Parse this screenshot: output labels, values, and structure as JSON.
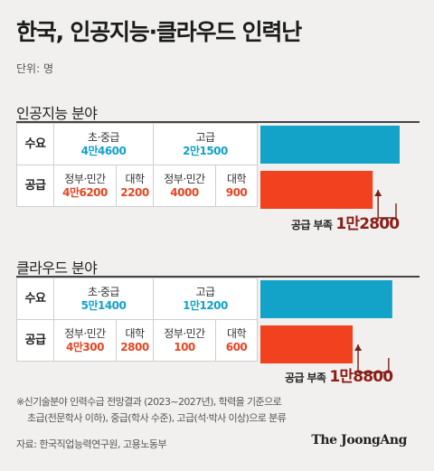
{
  "title": "한국, 인공지능·클라우드 인력난",
  "unit": "단위: 명",
  "colors": {
    "demand": "#13a3c9",
    "supply": "#f2411f",
    "shortage_text": "#8b1e18",
    "arrow": "#7b1f18"
  },
  "sections": [
    {
      "title": "인공지능 분야",
      "demand_label": "수요",
      "supply_label": "공급",
      "demand": [
        {
          "label": "초·중급",
          "value": "4만4600"
        },
        {
          "label": "고급",
          "value": "2만1500"
        }
      ],
      "supply": [
        {
          "label": "정부·민간",
          "value": "4만6200"
        },
        {
          "label": "대학",
          "value": "2200"
        },
        {
          "label": "정부·민간",
          "value": "4000"
        },
        {
          "label": "대학",
          "value": "900"
        }
      ],
      "shortage_label": "공급 부족",
      "shortage_value": "1만2800"
    },
    {
      "title": "클라우드 분야",
      "demand_label": "수요",
      "supply_label": "공급",
      "demand": [
        {
          "label": "초·중급",
          "value": "5만1400"
        },
        {
          "label": "고급",
          "value": "1만1200"
        }
      ],
      "supply": [
        {
          "label": "정부·민간",
          "value": "4만300"
        },
        {
          "label": "대학",
          "value": "2800"
        },
        {
          "label": "정부·민간",
          "value": "100"
        },
        {
          "label": "대학",
          "value": "600"
        }
      ],
      "shortage_label": "공급 부족",
      "shortage_value": "1만8800"
    }
  ],
  "chart_data": {
    "type": "bar",
    "categories": [
      "인공지능 분야",
      "클라우드 분야"
    ],
    "series": [
      {
        "name": "수요",
        "values": [
          66100,
          62600
        ]
      },
      {
        "name": "공급",
        "values": [
          53300,
          43800
        ]
      }
    ],
    "shortage": [
      12800,
      18800
    ]
  },
  "notes": [
    "※신기술분야 인력수급 전망결과 (2023~2027년), 학력을 기준으로",
    "초급(전문학사 이하), 중급(학사 수준), 고급(석·박사 이상)으로 분류"
  ],
  "source": "자료: 한국직업능력연구원, 고용노동부",
  "brand": "The JoongAng"
}
